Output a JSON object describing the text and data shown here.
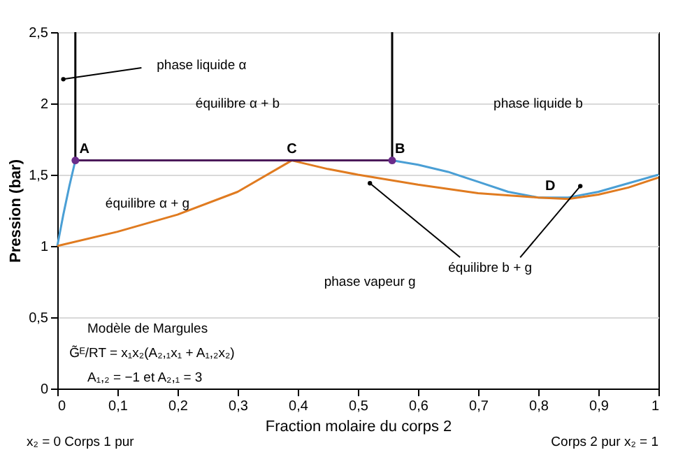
{
  "chart_data": {
    "type": "line",
    "xlabel": "Fraction molaire du corps 2",
    "ylabel": "Pression (bar)",
    "xlim": [
      0,
      1
    ],
    "ylim": [
      0,
      2.5
    ],
    "xticks": [
      0,
      {
        "value": 0.1,
        "label": "0,1"
      },
      {
        "value": 0.2,
        "label": "0,2"
      },
      {
        "value": 0.3,
        "label": "0,3"
      },
      {
        "value": 0.4,
        "label": "0,4"
      },
      {
        "value": 0.5,
        "label": "0,5"
      },
      {
        "value": 0.6,
        "label": "0,6"
      },
      {
        "value": 0.7,
        "label": "0,7"
      },
      {
        "value": 0.8,
        "label": "0,8"
      },
      {
        "value": 0.9,
        "label": "0,9"
      },
      1
    ],
    "yticks": [
      0,
      {
        "value": 0.5,
        "label": "0,5"
      },
      1,
      {
        "value": 1.5,
        "label": "1,5"
      },
      2,
      {
        "value": 2.5,
        "label": "2,5"
      }
    ],
    "grid": "y",
    "marker": "none",
    "line_style": "solid",
    "series": [
      {
        "color": "#4a9fd5",
        "x": [
          0,
          0.01,
          0.02,
          0.03
        ],
        "values": [
          1.0,
          1.22,
          1.42,
          1.6
        ]
      },
      {
        "color": "#4a9fd5",
        "x": [
          0.557,
          0.6,
          0.65,
          0.7,
          0.75,
          0.8,
          0.85,
          0.9,
          0.95,
          1
        ],
        "values": [
          1.6,
          1.57,
          1.52,
          1.45,
          1.38,
          1.34,
          1.34,
          1.38,
          1.44,
          1.5
        ]
      },
      {
        "color": "#e07b20",
        "x": [
          0,
          0.1,
          0.2,
          0.3,
          0.39,
          0.45,
          0.5,
          0.6,
          0.7,
          0.8,
          0.85,
          0.9,
          0.95,
          1
        ],
        "values": [
          1.0,
          1.1,
          1.22,
          1.38,
          1.6,
          1.54,
          1.5,
          1.43,
          1.37,
          1.34,
          1.33,
          1.36,
          1.41,
          1.48
        ]
      },
      {
        "color": "#000000",
        "x": [
          0.03,
          0.03
        ],
        "values": [
          1.6,
          2.5
        ]
      },
      {
        "color": "#000000",
        "x": [
          0.557,
          0.557
        ],
        "values": [
          1.6,
          2.5
        ]
      },
      {
        "color": "#4b1a5a",
        "x": [
          0.03,
          0.557
        ],
        "values": [
          1.6,
          1.6
        ]
      },
      {
        "type": "scatter",
        "marker": "circle",
        "color": "#6a2c8a",
        "x": [
          0.03,
          0.557
        ],
        "values": [
          1.6,
          1.6
        ]
      }
    ],
    "annotations": [
      "A",
      "C",
      "B",
      "D",
      "phase liquide α",
      "équilibre α + b",
      "phase liquide b",
      "équilibre α + g",
      "phase vapeur g",
      "équilibre b + g",
      "Modèle de Margules",
      "G̃ᴱ/RT = x₁x₂(A₂,₁x₁ + A₁,₂x₂)",
      "A₁,₂ = −1 et A₂,₁ = 3",
      "x₂ = 0 Corps 1 pur",
      "Corps 2 pur  x₂ = 1"
    ]
  }
}
